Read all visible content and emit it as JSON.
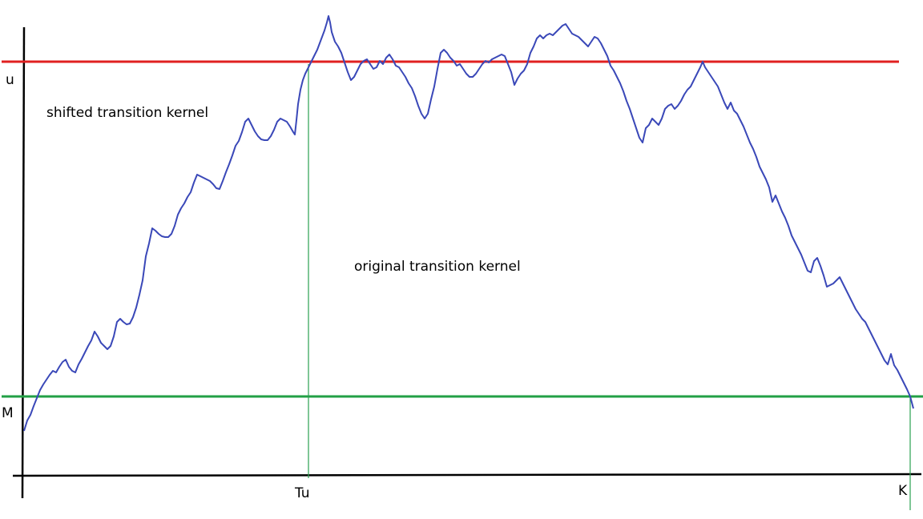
{
  "labels": {
    "u": "u",
    "m": "M",
    "tu": "Tu",
    "k": "K",
    "shifted": "shifted transition kernel",
    "original": "original transition kernel"
  },
  "colors": {
    "axis": "#000000",
    "upper_level": "#e02020",
    "lower_level": "#20a040",
    "path": "#3a48b8",
    "drop_lines": "#2aa050"
  }
}
